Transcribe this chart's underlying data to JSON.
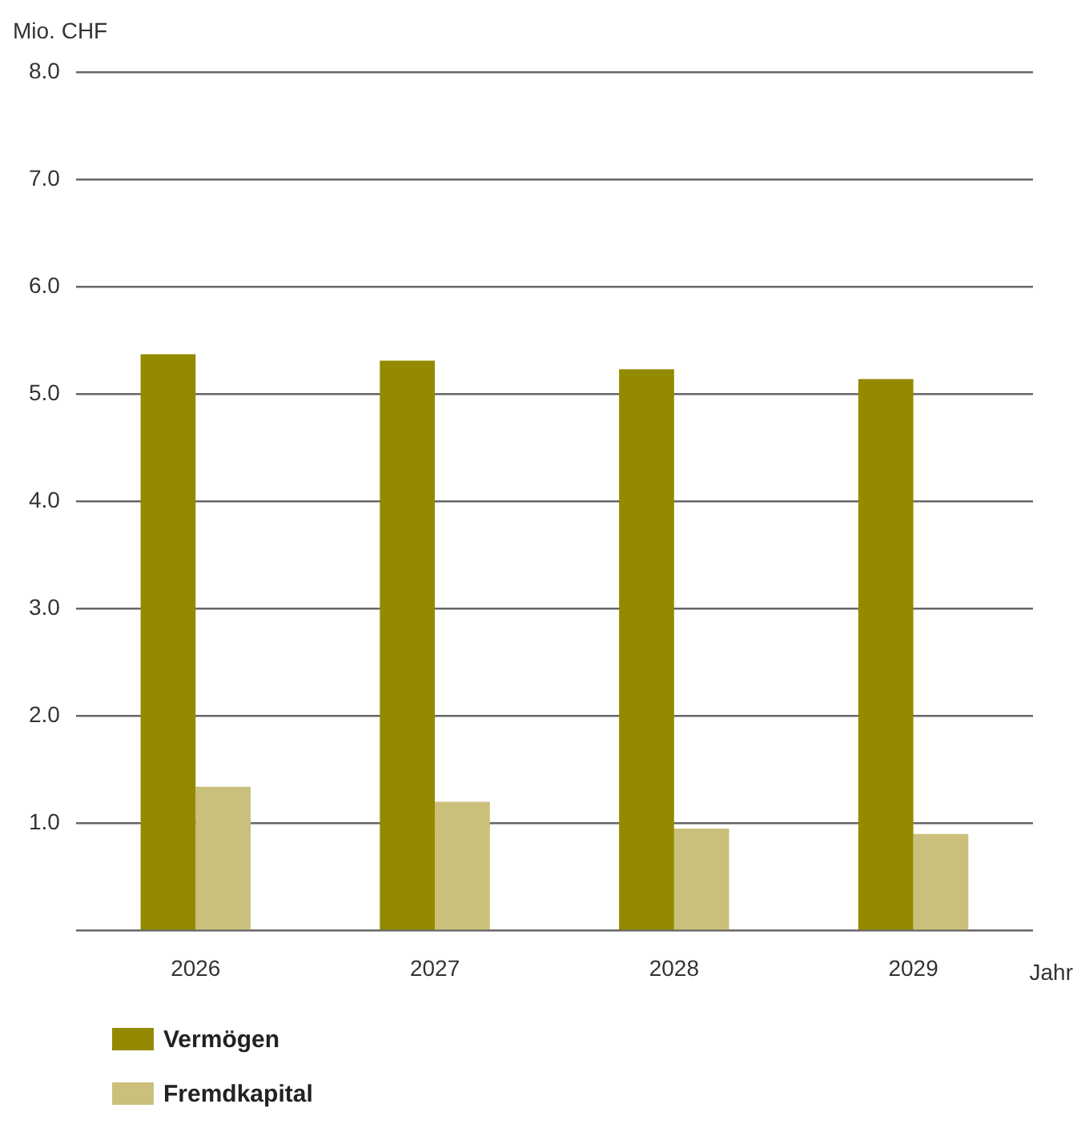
{
  "chart_data": {
    "type": "bar",
    "ylabel": "Mio. CHF",
    "xlabel": "Jahr",
    "categories": [
      "2026",
      "2027",
      "2028",
      "2029"
    ],
    "series": [
      {
        "name": "Vermögen",
        "color": "#948a00",
        "values": [
          5.37,
          5.31,
          5.23,
          5.14
        ]
      },
      {
        "name": "Fremdkapital",
        "color": "#cbc07b",
        "values": [
          1.34,
          1.2,
          0.95,
          0.9
        ]
      }
    ],
    "ylim": [
      0,
      8
    ],
    "yticks": [
      {
        "value": 0,
        "label": null
      },
      {
        "value": 1,
        "label": "1.0"
      },
      {
        "value": 2,
        "label": "2.0"
      },
      {
        "value": 3,
        "label": "3.0"
      },
      {
        "value": 4,
        "label": "4.0"
      },
      {
        "value": 5,
        "label": "5.0"
      },
      {
        "value": 6,
        "label": "6.0"
      },
      {
        "value": 7,
        "label": "7.0"
      },
      {
        "value": 8,
        "label": "8.0"
      }
    ],
    "grid": "y",
    "legend": "bottom"
  }
}
